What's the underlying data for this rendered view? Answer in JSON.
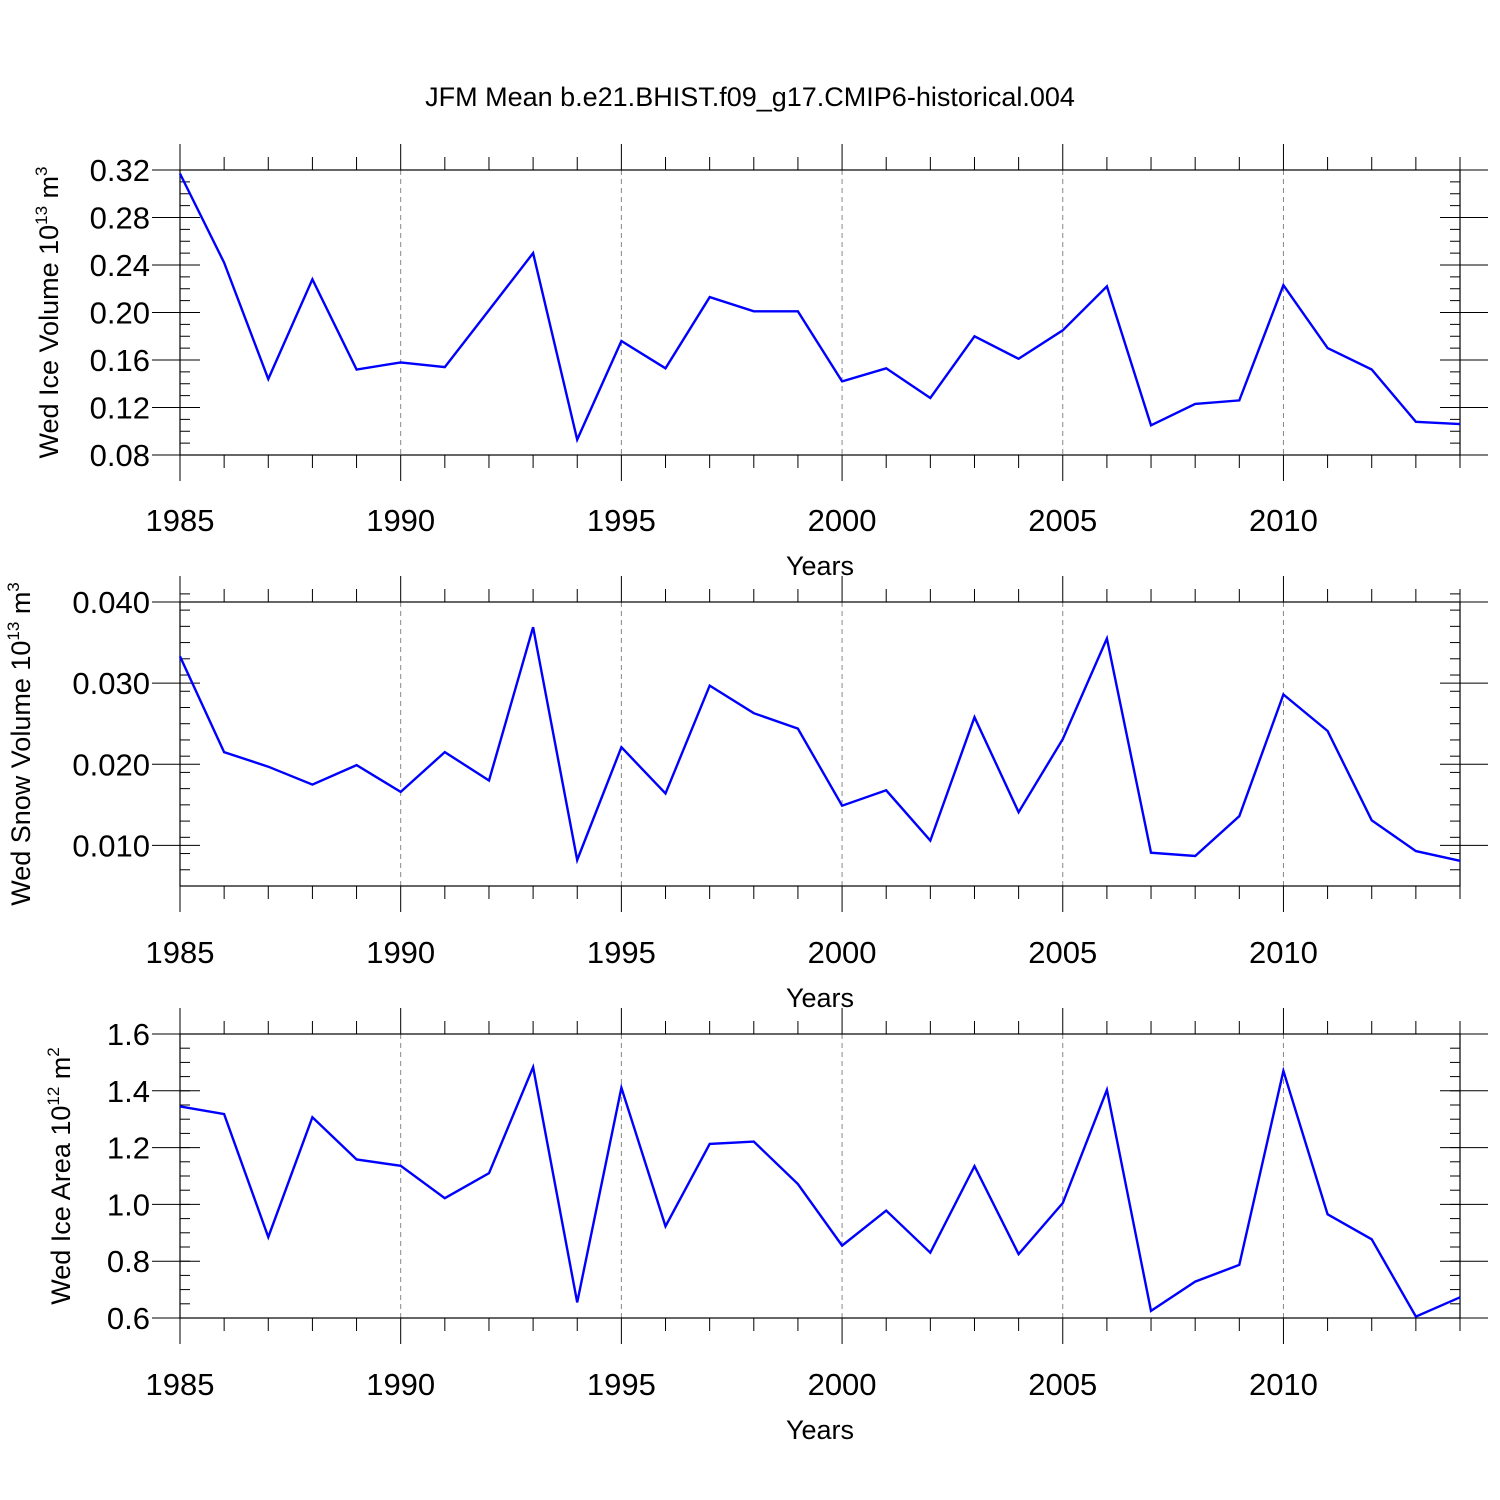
{
  "figure": {
    "title": "JFM Mean b.e21.BHIST.f09_g17.CMIP6-historical.004"
  },
  "chart_data": [
    {
      "type": "line",
      "ylabel": {
        "prefix": "Wed Ice Volume 10",
        "exp": "13",
        "unit": " m",
        "unit_exp": "3"
      },
      "xlabel": "Years",
      "xlim": [
        1985,
        2014
      ],
      "ylim": [
        0.08,
        0.32
      ],
      "xticks": [
        1985,
        1990,
        1995,
        2000,
        2005,
        2010
      ],
      "xtick_labels": [
        "1985",
        "1990",
        "1995",
        "2000",
        "2005",
        "2010"
      ],
      "yticks": [
        0.08,
        0.12,
        0.16,
        0.2,
        0.24,
        0.28,
        0.32
      ],
      "ytick_labels": [
        "0.08",
        "0.12",
        "0.16",
        "0.20",
        "0.24",
        "0.28",
        "0.32"
      ],
      "ymin_ticks": 0.01,
      "grid": "dashed vertical at labeled years",
      "line_color": "#0000ff",
      "x": [
        1985,
        1986,
        1987,
        1988,
        1989,
        1990,
        1991,
        1992,
        1993,
        1994,
        1995,
        1996,
        1997,
        1998,
        1999,
        2000,
        2001,
        2002,
        2003,
        2004,
        2005,
        2006,
        2007,
        2008,
        2009,
        2010,
        2011,
        2012,
        2013,
        2014
      ],
      "y": [
        0.317,
        0.242,
        0.144,
        0.228,
        0.152,
        0.158,
        0.154,
        0.202,
        0.25,
        0.093,
        0.176,
        0.153,
        0.213,
        0.201,
        0.201,
        0.142,
        0.153,
        0.128,
        0.18,
        0.161,
        0.185,
        0.222,
        0.105,
        0.123,
        0.126,
        0.223,
        0.17,
        0.152,
        0.108,
        0.106
      ]
    },
    {
      "type": "line",
      "ylabel": {
        "prefix": "Wed Snow Volume 10",
        "exp": "13",
        "unit": " m",
        "unit_exp": "3"
      },
      "xlabel": "Years",
      "xlim": [
        1985,
        2014
      ],
      "ylim": [
        0.005,
        0.04
      ],
      "xticks": [
        1985,
        1990,
        1995,
        2000,
        2005,
        2010
      ],
      "xtick_labels": [
        "1985",
        "1990",
        "1995",
        "2000",
        "2005",
        "2010"
      ],
      "yticks": [
        0.01,
        0.02,
        0.03,
        0.04
      ],
      "ytick_labels": [
        "0.010",
        "0.020",
        "0.030",
        "0.040"
      ],
      "ymin_ticks": 0.002,
      "grid": "dashed vertical at labeled years",
      "line_color": "#0000ff",
      "x": [
        1985,
        1986,
        1987,
        1988,
        1989,
        1990,
        1991,
        1992,
        1993,
        1994,
        1995,
        1996,
        1997,
        1998,
        1999,
        2000,
        2001,
        2002,
        2003,
        2004,
        2005,
        2006,
        2007,
        2008,
        2009,
        2010,
        2011,
        2012,
        2013,
        2014
      ],
      "y": [
        0.0333,
        0.0215,
        0.0197,
        0.0175,
        0.0199,
        0.0166,
        0.0215,
        0.018,
        0.0369,
        0.0082,
        0.0221,
        0.0164,
        0.0297,
        0.0263,
        0.0244,
        0.0149,
        0.0168,
        0.0106,
        0.0258,
        0.0141,
        0.0231,
        0.0355,
        0.0091,
        0.0087,
        0.0136,
        0.0286,
        0.0241,
        0.0131,
        0.0093,
        0.0081
      ]
    },
    {
      "type": "line",
      "ylabel": {
        "prefix": "Wed Ice Area 10",
        "exp": "12",
        "unit": " m",
        "unit_exp": "2"
      },
      "xlabel": "Years",
      "xlim": [
        1985,
        2014
      ],
      "ylim": [
        0.6,
        1.6
      ],
      "xticks": [
        1985,
        1990,
        1995,
        2000,
        2005,
        2010
      ],
      "xtick_labels": [
        "1985",
        "1990",
        "1995",
        "2000",
        "2005",
        "2010"
      ],
      "yticks": [
        0.6,
        0.8,
        1.0,
        1.2,
        1.4,
        1.6
      ],
      "ytick_labels": [
        "0.6",
        "0.8",
        "1.0",
        "1.2",
        "1.4",
        "1.6"
      ],
      "ymin_ticks": 0.05,
      "grid": "dashed vertical at labeled years",
      "line_color": "#0000ff",
      "x": [
        1985,
        1986,
        1987,
        1988,
        1989,
        1990,
        1991,
        1992,
        1993,
        1994,
        1995,
        1996,
        1997,
        1998,
        1999,
        2000,
        2001,
        2002,
        2003,
        2004,
        2005,
        2006,
        2007,
        2008,
        2009,
        2010,
        2011,
        2012,
        2013,
        2014
      ],
      "y": [
        1.345,
        1.318,
        0.885,
        1.307,
        1.158,
        1.136,
        1.022,
        1.11,
        1.483,
        0.655,
        1.411,
        0.923,
        1.213,
        1.221,
        1.072,
        0.855,
        0.978,
        0.83,
        1.135,
        0.825,
        1.005,
        1.403,
        0.625,
        0.728,
        0.787,
        1.47,
        0.965,
        0.877,
        0.605,
        0.673
      ]
    }
  ]
}
